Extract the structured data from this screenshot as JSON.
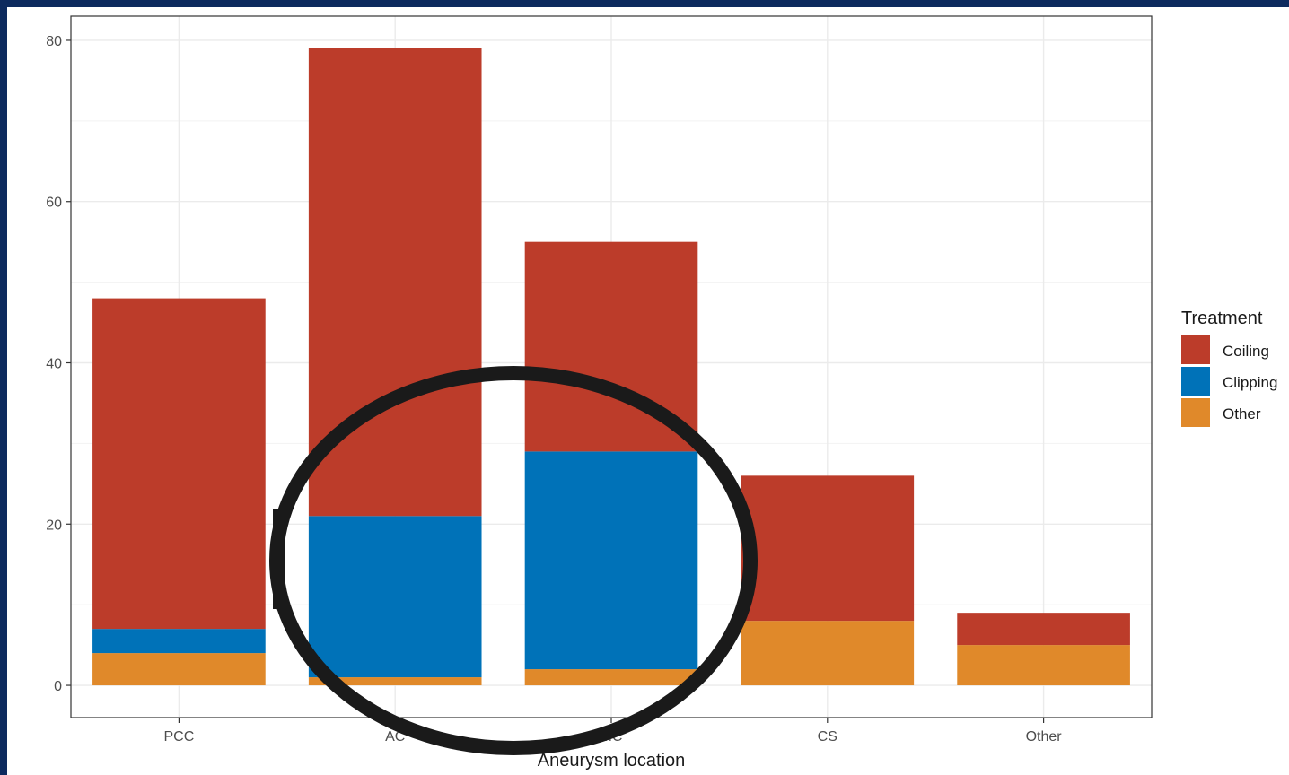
{
  "chart_data": {
    "type": "bar",
    "stacked": true,
    "categories": [
      "PCC",
      "ACA",
      "MCA",
      "CS",
      "Other"
    ],
    "visible_tick_labels": [
      "PCC",
      "AC",
      "MC",
      "CS",
      "Other"
    ],
    "series": [
      {
        "name": "Other",
        "color": "#e0892a",
        "values": [
          4,
          1,
          2,
          8,
          5
        ]
      },
      {
        "name": "Clipping",
        "color": "#0072b8",
        "values": [
          3,
          20,
          27,
          0,
          0
        ]
      },
      {
        "name": "Coiling",
        "color": "#bc3c2a",
        "values": [
          41,
          58,
          26,
          18,
          4
        ]
      }
    ],
    "xlabel": "Aneurysm location",
    "ylabel": "",
    "ylim": [
      -4,
      83
    ],
    "yticks": [
      0,
      20,
      40,
      60,
      80
    ],
    "grid": true,
    "legend": {
      "title": "Treatment",
      "position": "right",
      "entries": [
        "Coiling",
        "Clipping",
        "Other"
      ]
    },
    "annotation": {
      "shape": "ellipse",
      "color": "#1a1a1a",
      "highlights": [
        "ACA",
        "MCA"
      ]
    }
  }
}
